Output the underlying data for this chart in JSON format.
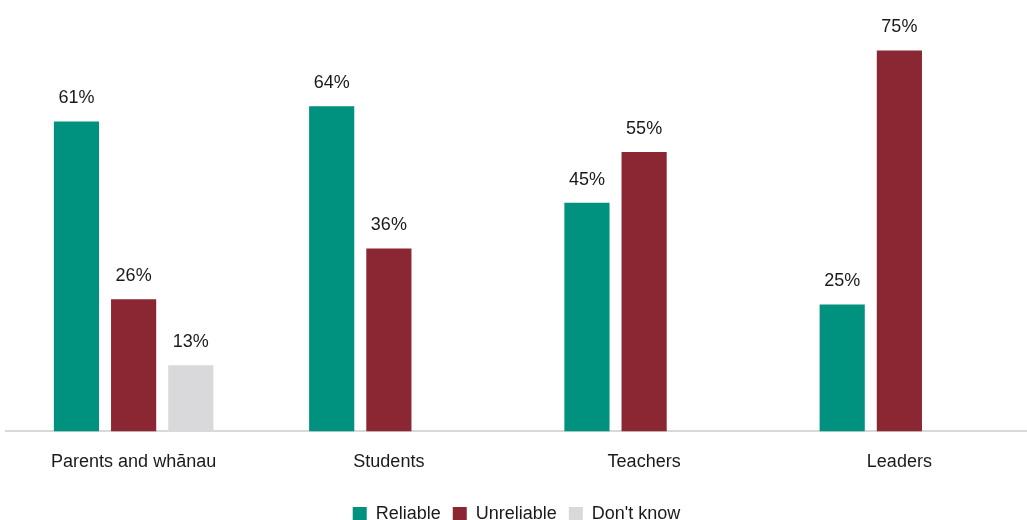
{
  "chart_data": {
    "type": "bar",
    "categories": [
      "Parents and whānau",
      "Students",
      "Teachers",
      "Leaders"
    ],
    "series": [
      {
        "name": "Reliable",
        "color": "#00917f",
        "values": [
          61,
          64,
          45,
          25
        ],
        "value_labels": [
          "61%",
          "64%",
          "45%",
          "25%"
        ]
      },
      {
        "name": "Unreliable",
        "color": "#8b2633",
        "values": [
          26,
          36,
          55,
          75
        ],
        "value_labels": [
          "26%",
          "36%",
          "55%",
          "75%"
        ]
      },
      {
        "name": "Don't know",
        "color": "#d9d9db",
        "values": [
          13,
          null,
          null,
          null
        ],
        "value_labels": [
          "13%",
          null,
          null,
          null
        ]
      }
    ],
    "legend": "bottom"
  }
}
